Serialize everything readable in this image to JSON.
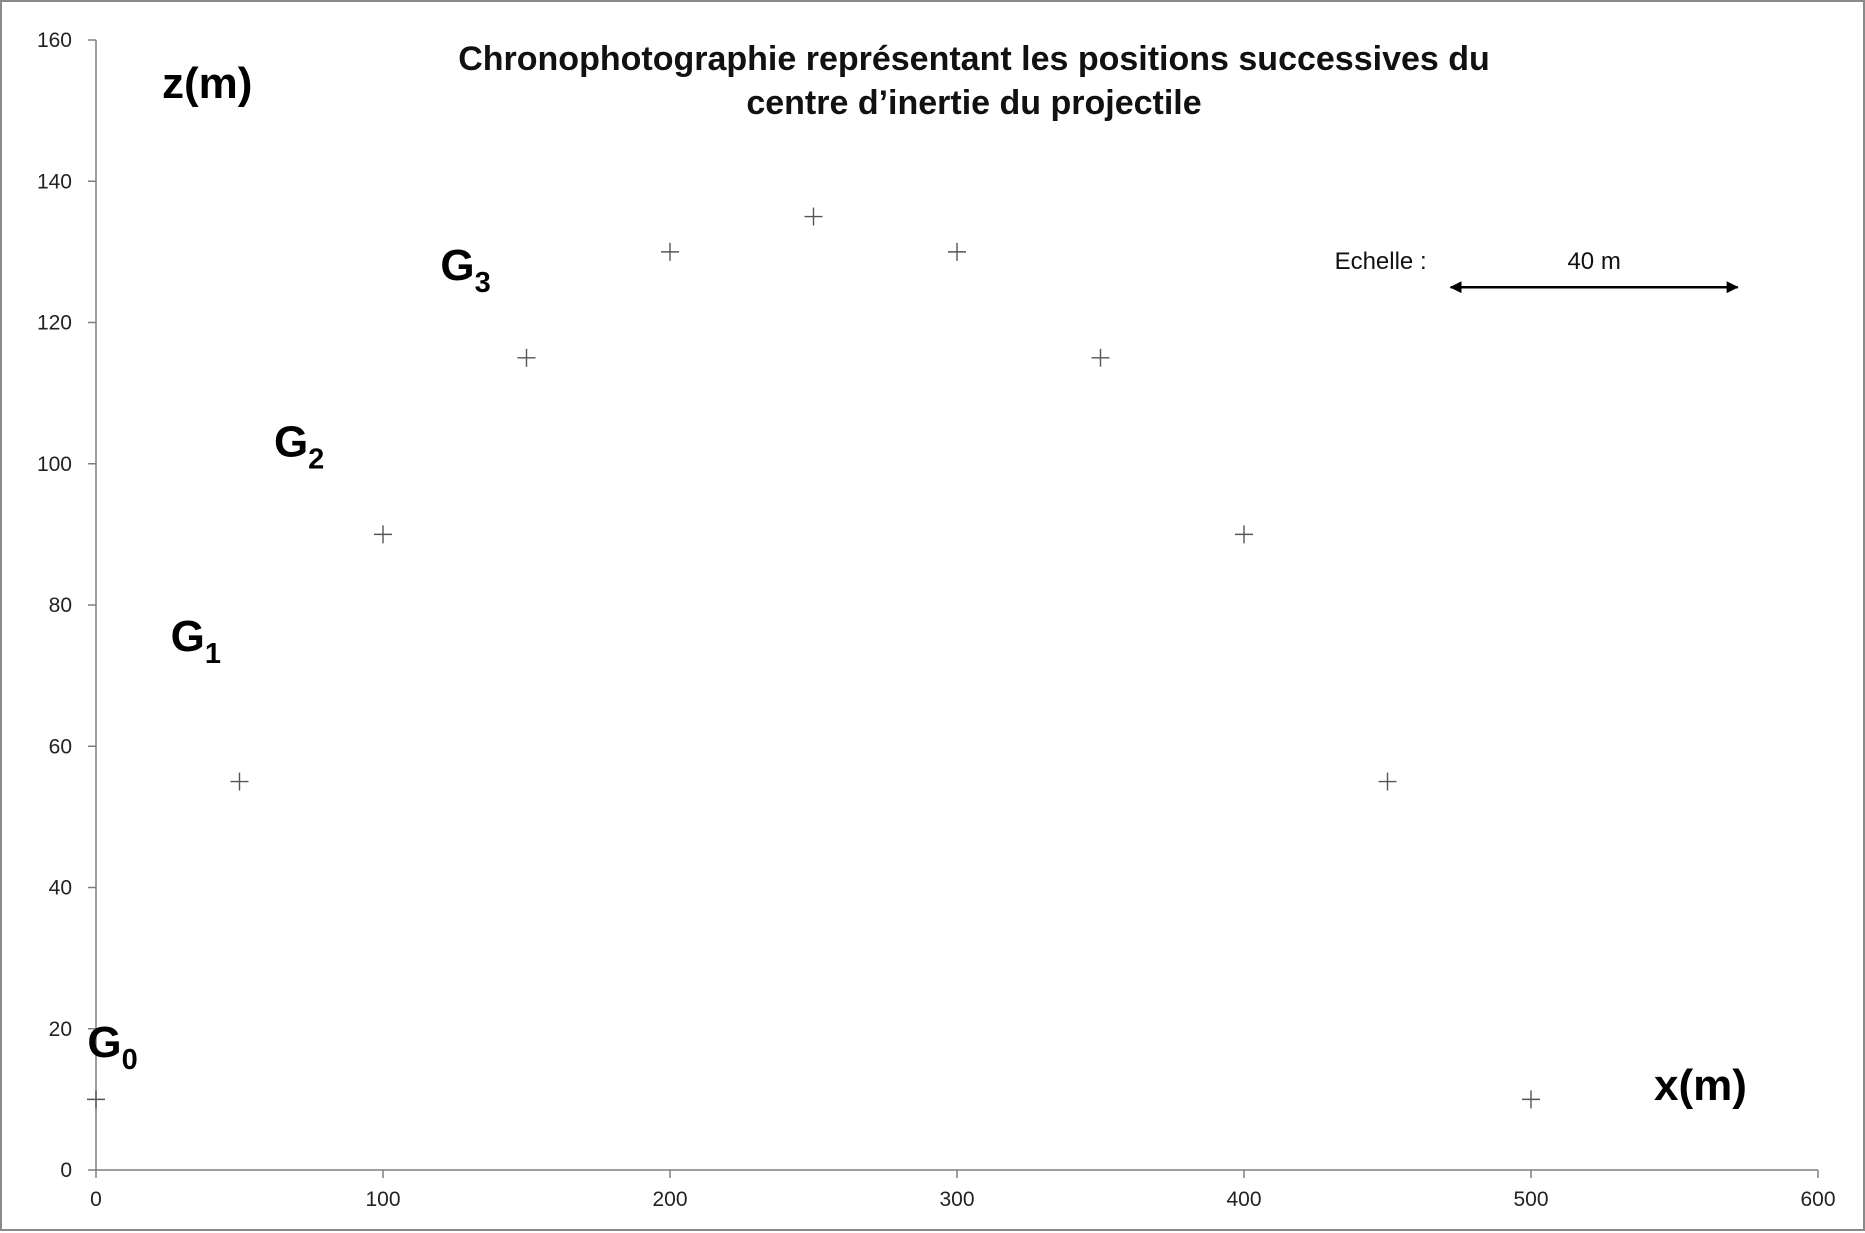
{
  "chart_data": {
    "type": "scatter",
    "title_lines": [
      "Chronophotographie représentant les positions successives du",
      "centre d’inertie du projectile"
    ],
    "xlabel": "x(m)",
    "ylabel": "z(m)",
    "xlim": [
      0,
      600
    ],
    "ylim": [
      0,
      160
    ],
    "x_ticks": [
      "0",
      "100",
      "200",
      "300",
      "400",
      "500",
      "600"
    ],
    "y_ticks": [
      "0",
      "20",
      "40",
      "60",
      "80",
      "100",
      "120",
      "140",
      "160"
    ],
    "grid": false,
    "marker": "+",
    "points": [
      {
        "x": 0,
        "z": 10
      },
      {
        "x": 50,
        "z": 55
      },
      {
        "x": 100,
        "z": 90
      },
      {
        "x": 150,
        "z": 115
      },
      {
        "x": 200,
        "z": 130
      },
      {
        "x": 250,
        "z": 135
      },
      {
        "x": 300,
        "z": 130
      },
      {
        "x": 350,
        "z": 115
      },
      {
        "x": 400,
        "z": 90
      },
      {
        "x": 450,
        "z": 55
      },
      {
        "x": 500,
        "z": 10
      }
    ],
    "point_labels": [
      {
        "main": "G",
        "sub": "0",
        "x": -3,
        "z": 16
      },
      {
        "main": "G",
        "sub": "1",
        "x": 26,
        "z": 73.5
      },
      {
        "main": "G",
        "sub": "2",
        "x": 62,
        "z": 101
      },
      {
        "main": "G",
        "sub": "3",
        "x": 120,
        "z": 126
      }
    ],
    "scale": {
      "label": "Echelle :",
      "length_label": "40 m",
      "x_start": 472,
      "x_end": 572,
      "z": 125
    }
  }
}
